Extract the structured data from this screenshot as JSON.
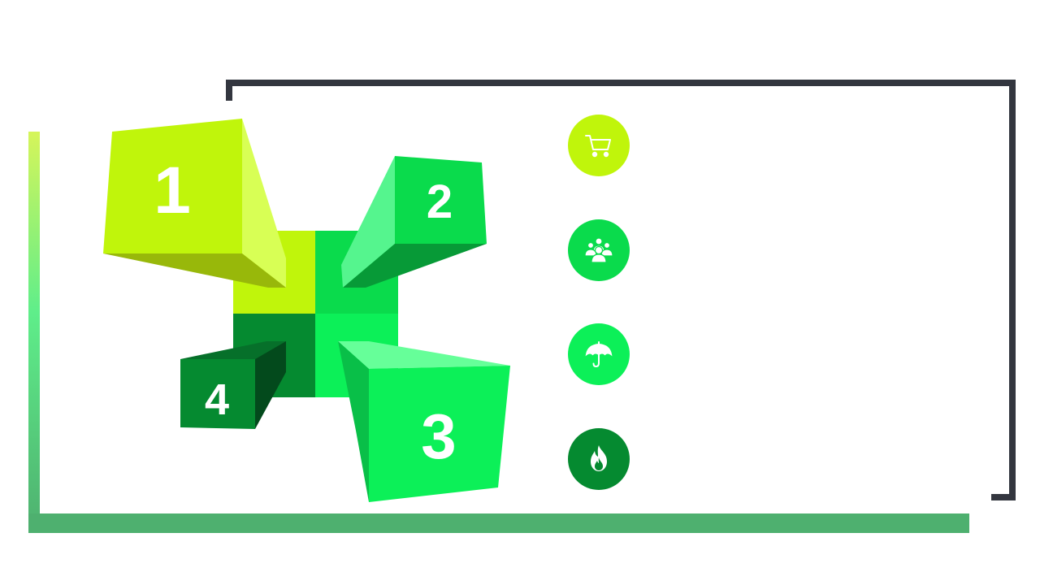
{
  "colors": {
    "frame_dark": "#33363f",
    "frame_green": "#4eb06f",
    "lime": "#c0f50b",
    "green": "#0adb4c",
    "bright_green": "#0cf058",
    "dark_green": "#058a30"
  },
  "blocks": [
    {
      "number": "1",
      "color": "lime"
    },
    {
      "number": "2",
      "color": "green"
    },
    {
      "number": "3",
      "color": "bright_green"
    },
    {
      "number": "4",
      "color": "dark_green"
    }
  ],
  "icons": [
    {
      "name": "cart-icon",
      "color": "#c0f50b"
    },
    {
      "name": "people-icon",
      "color": "#0adb4c"
    },
    {
      "name": "umbrella-icon",
      "color": "#0cf058"
    },
    {
      "name": "fire-icon",
      "color": "#058a30"
    }
  ]
}
